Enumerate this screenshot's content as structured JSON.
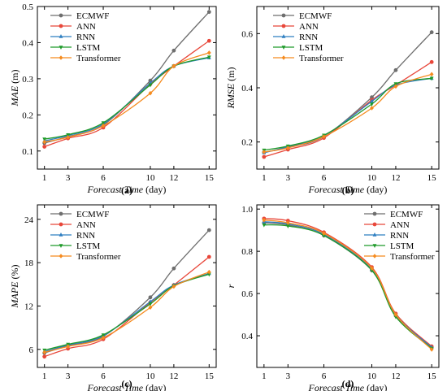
{
  "figure": {
    "colors": {
      "ECMWF": "#6e6e6e",
      "ANN": "#e8473a",
      "RNN": "#2f7fc1",
      "LSTM": "#1f9a2a",
      "Transformer": "#f58b1f"
    }
  },
  "chart_data": [
    {
      "type": "line",
      "panel_label": "(a)",
      "xlabel": "Forecast Time",
      "xunit": "(day)",
      "ylabel": "MAE",
      "yunit": "(m)",
      "x": [
        1,
        3,
        6,
        10,
        12,
        15
      ],
      "xticks": [
        "1",
        "3",
        "6",
        "10",
        "12",
        "15"
      ],
      "ylim": [
        0.05,
        0.5
      ],
      "yticks": [
        0.1,
        0.2,
        0.3,
        0.4,
        0.5
      ],
      "ytick_labels": [
        "0.1",
        "0.2",
        "0.3",
        "0.4",
        "0.5"
      ],
      "legend": "top-left",
      "grid": false,
      "series": [
        {
          "name": "ECMWF",
          "values": [
            0.122,
            0.14,
            0.172,
            0.295,
            0.378,
            0.485
          ]
        },
        {
          "name": "ANN",
          "values": [
            0.112,
            0.135,
            0.165,
            0.285,
            0.335,
            0.405
          ]
        },
        {
          "name": "RNN",
          "values": [
            0.128,
            0.143,
            0.175,
            0.288,
            0.335,
            0.358
          ]
        },
        {
          "name": "LSTM",
          "values": [
            0.133,
            0.145,
            0.178,
            0.283,
            0.335,
            0.36
          ]
        },
        {
          "name": "Transformer",
          "values": [
            0.125,
            0.138,
            0.17,
            0.26,
            0.335,
            0.372
          ]
        }
      ]
    },
    {
      "type": "line",
      "panel_label": "(b)",
      "xlabel": "Forecast Time",
      "xunit": "(day)",
      "ylabel": "RMSE",
      "yunit": "(m)",
      "x": [
        1,
        3,
        6,
        10,
        12,
        15
      ],
      "xticks": [
        "1",
        "3",
        "6",
        "10",
        "12",
        "15"
      ],
      "ylim": [
        0.1,
        0.7
      ],
      "yticks": [
        0.2,
        0.4,
        0.6
      ],
      "ytick_labels": [
        "0.2",
        "0.4",
        "0.6"
      ],
      "legend": "top-left",
      "grid": false,
      "series": [
        {
          "name": "ECMWF",
          "values": [
            0.162,
            0.18,
            0.22,
            0.365,
            0.465,
            0.605
          ]
        },
        {
          "name": "ANN",
          "values": [
            0.145,
            0.172,
            0.215,
            0.355,
            0.41,
            0.495
          ]
        },
        {
          "name": "RNN",
          "values": [
            0.16,
            0.183,
            0.222,
            0.35,
            0.41,
            0.435
          ]
        },
        {
          "name": "LSTM",
          "values": [
            0.17,
            0.185,
            0.225,
            0.34,
            0.415,
            0.435
          ]
        },
        {
          "name": "Transformer",
          "values": [
            0.163,
            0.178,
            0.22,
            0.325,
            0.405,
            0.45
          ]
        }
      ]
    },
    {
      "type": "line",
      "panel_label": "(c)",
      "xlabel": "Forecast Time",
      "xunit": "(day)",
      "ylabel": "MAPE",
      "yunit": "(%)",
      "x": [
        1,
        3,
        6,
        10,
        12,
        15
      ],
      "xticks": [
        "1",
        "3",
        "6",
        "10",
        "12",
        "15"
      ],
      "ylim": [
        3.5,
        26
      ],
      "yticks": [
        6,
        12,
        18,
        24
      ],
      "ytick_labels": [
        "6",
        "12",
        "18",
        "24"
      ],
      "legend": "top-left",
      "grid": false,
      "series": [
        {
          "name": "ECMWF",
          "values": [
            5.5,
            6.5,
            7.8,
            13.2,
            17.2,
            22.5
          ]
        },
        {
          "name": "ANN",
          "values": [
            5.0,
            6.1,
            7.4,
            12.5,
            14.9,
            18.8
          ]
        },
        {
          "name": "RNN",
          "values": [
            5.7,
            6.6,
            7.9,
            12.6,
            14.9,
            16.5
          ]
        },
        {
          "name": "LSTM",
          "values": [
            5.9,
            6.7,
            8.0,
            12.3,
            14.8,
            16.4
          ]
        },
        {
          "name": "Transformer",
          "values": [
            5.6,
            6.4,
            7.6,
            11.8,
            14.7,
            16.7
          ]
        }
      ]
    },
    {
      "type": "line",
      "panel_label": "(d)",
      "xlabel": "Forecast Time",
      "xunit": "(day)",
      "ylabel": "r",
      "yunit": "",
      "x": [
        1,
        3,
        6,
        10,
        12,
        15
      ],
      "xticks": [
        "1",
        "3",
        "6",
        "10",
        "12",
        "15"
      ],
      "ylim": [
        0.25,
        1.02
      ],
      "yticks": [
        0.4,
        0.6,
        0.8,
        1.0
      ],
      "ytick_labels": [
        "0.4",
        "0.6",
        "0.8",
        "1.0"
      ],
      "legend": "top-right",
      "grid": false,
      "series": [
        {
          "name": "ECMWF",
          "values": [
            0.935,
            0.925,
            0.875,
            0.71,
            0.495,
            0.345
          ]
        },
        {
          "name": "ANN",
          "values": [
            0.955,
            0.945,
            0.89,
            0.725,
            0.505,
            0.35
          ]
        },
        {
          "name": "RNN",
          "values": [
            0.94,
            0.93,
            0.88,
            0.715,
            0.5,
            0.345
          ]
        },
        {
          "name": "LSTM",
          "values": [
            0.925,
            0.92,
            0.875,
            0.71,
            0.49,
            0.34
          ]
        },
        {
          "name": "Transformer",
          "values": [
            0.948,
            0.935,
            0.885,
            0.72,
            0.5,
            0.335
          ]
        }
      ]
    }
  ]
}
